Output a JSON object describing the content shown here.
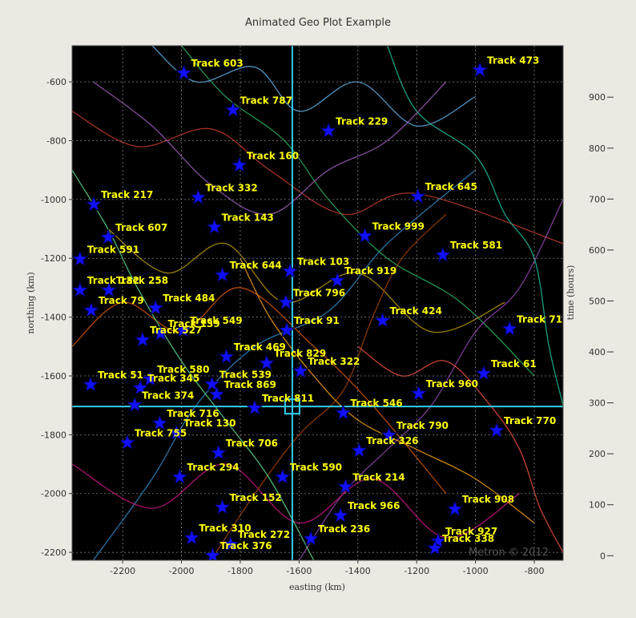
{
  "chart_data": {
    "type": "scatter",
    "title": "Animated Geo Plot Example",
    "x_label": "easting (km)",
    "y_label": "northing (km)",
    "y2_label": "time (hours)",
    "watermark": "Metron © 2012",
    "xlim": [
      -2372,
      -702
    ],
    "ylim": [
      -2227,
      -477
    ],
    "y2lim": [
      -9,
      1001
    ],
    "xticks": [
      -2200,
      -2000,
      -1800,
      -1600,
      -1400,
      -1200,
      -1000,
      -800
    ],
    "yticks": [
      -600,
      -800,
      -1000,
      -1200,
      -1400,
      -1600,
      -1800,
      -2000,
      -2200
    ],
    "y2ticks": [
      0,
      100,
      200,
      300,
      400,
      500,
      600,
      700,
      800,
      900
    ],
    "grid": true,
    "background": "#000000",
    "marker_color": "#1010ff",
    "label_color": "#ffff00",
    "cursor": {
      "x": -1623,
      "y": -1704,
      "color": "#33ccee"
    },
    "points": {
      "labels": [
        "Track 603",
        "Track 473",
        "Track 787",
        "Track 229",
        "Track 160",
        "Track 645",
        "Track 332",
        "Track 143",
        "Track 999",
        "Track 581",
        "Track 607",
        "Track 591",
        "Track 644",
        "Track 103",
        "Track 919",
        "Track 796",
        "Track 484",
        "Track 79",
        "Track 424",
        "Track 91",
        "Track 71",
        "Track 139",
        "Track 549",
        "Track 527",
        "Track 469",
        "Track 829",
        "Track 322",
        "Track 61",
        "Track 580",
        "Track 345",
        "Track 539",
        "Track 869",
        "Track 960",
        "Track 546",
        "Track 374",
        "Track 811",
        "Track 716",
        "Track 130",
        "Track 790",
        "Track 326",
        "Track 770",
        "Track 706",
        "Track 294",
        "Track 590",
        "Track 214",
        "Track 908",
        "Track 152",
        "Track 966",
        "Track 236",
        "Track 927",
        "Track 338",
        "Track 310",
        "Track 272",
        "Track 376",
        "Track 217",
        "Track 258",
        "Track 132",
        "Track 51",
        "Track 755"
      ],
      "x": [
        -1992,
        -985,
        -1825,
        -1500,
        -1803,
        -1196,
        -1943,
        -1888,
        -1376,
        -1111,
        -2249,
        -2345,
        -1861,
        -1631,
        -1470,
        -1645,
        -2088,
        -2307,
        -1316,
        -1642,
        -884,
        -2071,
        -1995,
        -2132,
        -1847,
        -1710,
        -1595,
        -972,
        -2107,
        -2140,
        -1896,
        -1880,
        -1193,
        -1450,
        -2159,
        -1751,
        -2074,
        -2017,
        -1294,
        -1396,
        -928,
        -1874,
        -2006,
        -1656,
        -1442,
        -1070,
        -1861,
        -1459,
        -1560,
        -1127,
        -1138,
        -1965,
        -1833,
        -1894,
        -2298,
        -2247,
        -2345,
        -2309,
        -2184
      ],
      "y": [
        -570,
        -560,
        -696,
        -767,
        -884,
        -990,
        -993,
        -1094,
        -1124,
        -1189,
        -1129,
        -1203,
        -1257,
        -1244,
        -1276,
        -1350,
        -1369,
        -1377,
        -1412,
        -1445,
        -1440,
        -1456,
        -1445,
        -1478,
        -1535,
        -1557,
        -1584,
        -1592,
        -1611,
        -1641,
        -1628,
        -1663,
        -1660,
        -1726,
        -1699,
        -1709,
        -1761,
        -1794,
        -1802,
        -1854,
        -1786,
        -1862,
        -1944,
        -1944,
        -1977,
        -2053,
        -2047,
        -2075,
        -2154,
        -2162,
        -2186,
        -2151,
        -2173,
        -2211,
        -1017,
        -1309,
        -1309,
        -1630,
        -1827
      ]
    },
    "tracks": [
      {
        "color": "#c0392b",
        "x": [
          -2372,
          -2150,
          -1900,
          -1700,
          -1450,
          -1200,
          -702
        ],
        "y": [
          -700,
          -820,
          -760,
          -900,
          -1050,
          -980,
          -1150
        ]
      },
      {
        "color": "#2e86c1",
        "x": [
          -2300,
          -2100,
          -1950,
          -1750,
          -1500,
          -1300,
          -1000
        ],
        "y": [
          -2227,
          -1950,
          -1700,
          -1500,
          -1380,
          -1150,
          -900
        ]
      },
      {
        "color": "#27ae60",
        "x": [
          -2000,
          -1850,
          -1650,
          -1500,
          -1300,
          -1050,
          -800
        ],
        "y": [
          -477,
          -650,
          -800,
          -1000,
          -1200,
          -1350,
          -1600
        ]
      },
      {
        "color": "#d35400",
        "x": [
          -2372,
          -2200,
          -2000,
          -1800,
          -1550,
          -1350,
          -1100
        ],
        "y": [
          -1500,
          -1350,
          -1450,
          -1300,
          -1500,
          -1700,
          -2000
        ]
      },
      {
        "color": "#8e44ad",
        "x": [
          -1600,
          -1450,
          -1300,
          -1150,
          -1000,
          -850,
          -702
        ],
        "y": [
          -2227,
          -2000,
          -1850,
          -1700,
          -1450,
          -1300,
          -1000
        ]
      },
      {
        "color": "#b7950b",
        "x": [
          -2250,
          -2050,
          -1850,
          -1650,
          -1400,
          -1150,
          -900
        ],
        "y": [
          -1100,
          -1250,
          -1150,
          -1350,
          -1250,
          -1450,
          -1350
        ]
      },
      {
        "color": "#1abc9c",
        "x": [
          -1300,
          -1200,
          -1000,
          -900,
          -800,
          -750,
          -702
        ],
        "y": [
          -477,
          -700,
          -850,
          -1050,
          -1200,
          -1500,
          -1700
        ]
      },
      {
        "color": "#c71585",
        "x": [
          -2372,
          -2100,
          -1850,
          -1600,
          -1350,
          -1100,
          -850
        ],
        "y": [
          -1900,
          -2050,
          -1900,
          -2100,
          -1950,
          -2150,
          -2000
        ]
      },
      {
        "color": "#5dade2",
        "x": [
          -2100,
          -1950,
          -1750,
          -1600,
          -1400,
          -1200,
          -1000
        ],
        "y": [
          -477,
          -600,
          -550,
          -700,
          -600,
          -750,
          -650
        ]
      },
      {
        "color": "#a04000",
        "x": [
          -1900,
          -1750,
          -1600,
          -1450,
          -1350,
          -1250,
          -1100
        ],
        "y": [
          -2227,
          -2000,
          -1800,
          -1650,
          -1400,
          -1200,
          -1050
        ]
      },
      {
        "color": "#58d68d",
        "x": [
          -2372,
          -2250,
          -2150,
          -2000,
          -1850,
          -1700,
          -1550
        ],
        "y": [
          -900,
          -1100,
          -1300,
          -1550,
          -1750,
          -1950,
          -2227
        ]
      },
      {
        "color": "#e74c3c",
        "x": [
          -1400,
          -1250,
          -1100,
          -950,
          -850,
          -780,
          -702
        ],
        "y": [
          -1500,
          -1600,
          -1550,
          -1700,
          -1850,
          -2050,
          -2200
        ]
      },
      {
        "color": "#9b59b6",
        "x": [
          -2300,
          -2100,
          -1900,
          -1700,
          -1500,
          -1300,
          -1100
        ],
        "y": [
          -600,
          -750,
          -950,
          -1050,
          -900,
          -800,
          -600
        ]
      },
      {
        "color": "#f39c12",
        "x": [
          -1800,
          -1700,
          -1550,
          -1400,
          -1200,
          -1000,
          -800
        ],
        "y": [
          -1200,
          -1400,
          -1600,
          -1750,
          -1850,
          -1950,
          -2100
        ]
      }
    ]
  }
}
